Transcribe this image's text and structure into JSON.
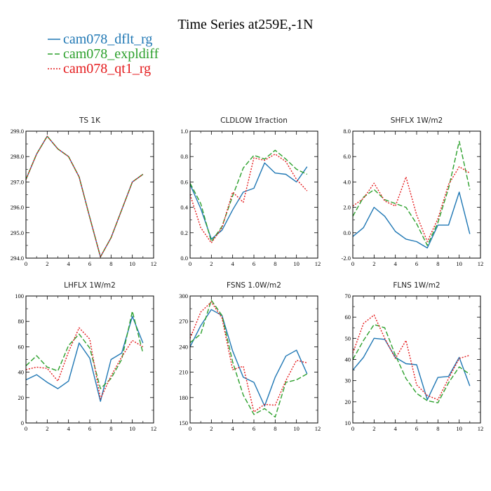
{
  "title": "Time Series at259E,-1N",
  "legend": [
    {
      "name": "cam078_dflt_rg",
      "color": "#1f77b4",
      "dash": ""
    },
    {
      "name": "cam078_expldiff",
      "color": "#2ca02c",
      "dash": "7,3"
    },
    {
      "name": "cam078_qt1_rg",
      "color": "#e41a1c",
      "dash": "2,2"
    }
  ],
  "chart_data": [
    {
      "type": "line",
      "title": "TS   1K",
      "x": [
        0,
        1,
        2,
        3,
        4,
        5,
        6,
        7,
        8,
        9,
        10,
        11
      ],
      "xlim": [
        0,
        12
      ],
      "xticks": [
        0,
        2,
        4,
        6,
        8,
        10,
        12
      ],
      "xtick_labels": [
        "0",
        "2",
        "4",
        "6",
        "8",
        "10",
        "12"
      ],
      "ylim": [
        294.0,
        299.0
      ],
      "yticks": [
        294,
        295,
        296,
        297,
        298,
        299
      ],
      "ytick_labels": [
        "294.0",
        "295.0",
        "296.0",
        "297.0",
        "298.0",
        "299.0"
      ],
      "series": [
        {
          "name": "cam078_dflt_rg",
          "values": [
            297.1,
            298.1,
            298.8,
            298.3,
            298.0,
            297.2,
            295.6,
            294.05,
            294.8,
            295.9,
            297.0,
            297.3
          ]
        },
        {
          "name": "cam078_expldiff",
          "values": [
            297.1,
            298.1,
            298.8,
            298.3,
            298.0,
            297.2,
            295.6,
            294.05,
            294.8,
            295.9,
            297.0,
            297.3
          ]
        },
        {
          "name": "cam078_qt1_rg",
          "values": [
            297.1,
            298.1,
            298.8,
            298.3,
            298.0,
            297.2,
            295.6,
            294.05,
            294.8,
            295.9,
            297.0,
            297.3
          ]
        }
      ]
    },
    {
      "type": "line",
      "title": "CLDLOW   1fraction",
      "x": [
        0,
        1,
        2,
        3,
        4,
        5,
        6,
        7,
        8,
        9,
        10,
        11
      ],
      "xlim": [
        0,
        12
      ],
      "xticks": [
        0,
        2,
        4,
        6,
        8,
        10,
        12
      ],
      "xtick_labels": [
        "0",
        "2",
        "4",
        "6",
        "8",
        "10",
        "12"
      ],
      "ylim": [
        0.0,
        1.0
      ],
      "yticks": [
        0,
        0.2,
        0.4,
        0.6,
        0.8,
        1.0
      ],
      "ytick_labels": [
        "0.0",
        "0.2",
        "0.4",
        "0.6",
        "0.8",
        "1.0"
      ],
      "series": [
        {
          "name": "cam078_dflt_rg",
          "values": [
            0.58,
            0.39,
            0.15,
            0.22,
            0.38,
            0.52,
            0.55,
            0.75,
            0.67,
            0.66,
            0.6,
            0.72
          ]
        },
        {
          "name": "cam078_expldiff",
          "values": [
            0.59,
            0.43,
            0.13,
            0.25,
            0.49,
            0.71,
            0.81,
            0.78,
            0.85,
            0.78,
            0.7,
            0.66
          ]
        },
        {
          "name": "cam078_qt1_rg",
          "values": [
            0.5,
            0.24,
            0.12,
            0.24,
            0.52,
            0.44,
            0.79,
            0.77,
            0.82,
            0.76,
            0.62,
            0.53
          ]
        }
      ]
    },
    {
      "type": "line",
      "title": "SHFLX   1W/m2",
      "x": [
        0,
        1,
        2,
        3,
        4,
        5,
        6,
        7,
        8,
        9,
        10,
        11
      ],
      "xlim": [
        0,
        12
      ],
      "xticks": [
        0,
        2,
        4,
        6,
        8,
        10,
        12
      ],
      "xtick_labels": [
        "0",
        "2",
        "4",
        "6",
        "8",
        "10",
        "12"
      ],
      "ylim": [
        -2.0,
        8.0
      ],
      "yticks": [
        -2,
        0,
        2,
        4,
        6,
        8
      ],
      "ytick_labels": [
        "-2.0",
        "0.0",
        "2.0",
        "4.0",
        "6.0",
        "8.0"
      ],
      "series": [
        {
          "name": "cam078_dflt_rg",
          "values": [
            -0.3,
            0.4,
            2.0,
            1.3,
            0.1,
            -0.5,
            -0.7,
            -1.2,
            0.6,
            0.6,
            3.2,
            -0.1
          ]
        },
        {
          "name": "cam078_expldiff",
          "values": [
            1.3,
            2.8,
            3.4,
            2.6,
            2.3,
            2.0,
            0.7,
            -1.0,
            0.8,
            3.5,
            7.2,
            3.4
          ]
        },
        {
          "name": "cam078_qt1_rg",
          "values": [
            2.1,
            2.7,
            3.9,
            2.5,
            2.1,
            4.4,
            1.4,
            -0.7,
            1.1,
            3.8,
            5.2,
            4.7
          ]
        }
      ]
    },
    {
      "type": "line",
      "title": "LHFLX   1W/m2",
      "x": [
        0,
        1,
        2,
        3,
        4,
        5,
        6,
        7,
        8,
        9,
        10,
        11
      ],
      "xlim": [
        0,
        12
      ],
      "xticks": [
        0,
        2,
        4,
        6,
        8,
        10,
        12
      ],
      "xtick_labels": [
        "0",
        "2",
        "4",
        "6",
        "8",
        "10",
        "12"
      ],
      "ylim": [
        0,
        100
      ],
      "yticks": [
        0,
        20,
        40,
        60,
        80,
        100
      ],
      "ytick_labels": [
        "0",
        "20",
        "40",
        "60",
        "80",
        "100"
      ],
      "series": [
        {
          "name": "cam078_dflt_rg",
          "values": [
            34,
            38,
            32,
            27,
            33,
            63,
            51,
            17,
            50,
            55,
            84,
            63
          ]
        },
        {
          "name": "cam078_expldiff",
          "values": [
            45,
            53,
            44,
            41,
            61,
            70,
            59,
            27,
            35,
            50,
            88,
            55
          ]
        },
        {
          "name": "cam078_qt1_rg",
          "values": [
            42,
            44,
            43,
            33,
            56,
            75,
            66,
            19,
            37,
            52,
            65,
            60
          ]
        }
      ]
    },
    {
      "type": "line",
      "title": "FSNS   1.0W/m2",
      "x": [
        0,
        1,
        2,
        3,
        4,
        5,
        6,
        7,
        8,
        9,
        10,
        11
      ],
      "xlim": [
        0,
        12
      ],
      "xticks": [
        0,
        2,
        4,
        6,
        8,
        10,
        12
      ],
      "xtick_labels": [
        "0",
        "2",
        "4",
        "6",
        "8",
        "10",
        "12"
      ],
      "ylim": [
        150,
        300
      ],
      "yticks": [
        150,
        180,
        210,
        240,
        270,
        300
      ],
      "ytick_labels": [
        "150",
        "180",
        "210",
        "240",
        "270",
        "300"
      ],
      "series": [
        {
          "name": "cam078_dflt_rg",
          "values": [
            240,
            265,
            284,
            277,
            235,
            204,
            198,
            170,
            204,
            229,
            236,
            208
          ]
        },
        {
          "name": "cam078_expldiff",
          "values": [
            245,
            255,
            295,
            277,
            222,
            183,
            160,
            167,
            157,
            198,
            201,
            208
          ]
        },
        {
          "name": "cam078_qt1_rg",
          "values": [
            250,
            281,
            293,
            274,
            213,
            217,
            163,
            172,
            171,
            200,
            224,
            221
          ]
        }
      ]
    },
    {
      "type": "line",
      "title": "FLNS   1W/m2",
      "x": [
        0,
        1,
        2,
        3,
        4,
        5,
        6,
        7,
        8,
        9,
        10,
        11
      ],
      "xlim": [
        0,
        12
      ],
      "xticks": [
        0,
        2,
        4,
        6,
        8,
        10,
        12
      ],
      "xtick_labels": [
        "0",
        "2",
        "4",
        "6",
        "8",
        "10",
        "12"
      ],
      "ylim": [
        10,
        70
      ],
      "yticks": [
        10,
        20,
        30,
        40,
        50,
        60,
        70
      ],
      "ytick_labels": [
        "10",
        "20",
        "30",
        "40",
        "50",
        "60",
        "70"
      ],
      "series": [
        {
          "name": "cam078_dflt_rg",
          "values": [
            35,
            41,
            50,
            49.5,
            41,
            38,
            37.5,
            21,
            31.5,
            32,
            41,
            27.5
          ]
        },
        {
          "name": "cam078_expldiff",
          "values": [
            40,
            49,
            56.5,
            55,
            42,
            31,
            24,
            20.5,
            19.5,
            29,
            36.5,
            33
          ]
        },
        {
          "name": "cam078_qt1_rg",
          "values": [
            43,
            57,
            61,
            50,
            40.5,
            49,
            28,
            23,
            21,
            31,
            40.5,
            42
          ]
        }
      ]
    }
  ]
}
